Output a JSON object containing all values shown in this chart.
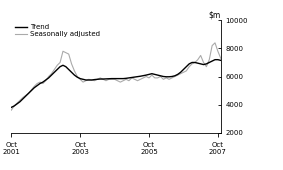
{
  "ylim": [
    2000,
    10000
  ],
  "yticks": [
    2000,
    4000,
    6000,
    8000,
    10000
  ],
  "xlim": [
    0,
    73
  ],
  "xtick_positions": [
    0,
    24,
    48,
    72
  ],
  "xtick_labels": [
    "Oct\n2001",
    "Oct\n2003",
    "Oct\n2005",
    "Oct\n2007"
  ],
  "legend_entries": [
    "Trend",
    "Seasonally adjusted"
  ],
  "trend_color": "#000000",
  "seas_color": "#aaaaaa",
  "background_color": "#ffffff",
  "trend_lw": 1.0,
  "seas_lw": 0.8,
  "trend_data": [
    3800,
    3900,
    4050,
    4200,
    4400,
    4600,
    4800,
    5000,
    5200,
    5350,
    5500,
    5600,
    5750,
    5900,
    6100,
    6300,
    6500,
    6700,
    6800,
    6700,
    6500,
    6300,
    6100,
    5950,
    5850,
    5800,
    5750,
    5750,
    5750,
    5780,
    5800,
    5820,
    5820,
    5830,
    5840,
    5850,
    5850,
    5850,
    5850,
    5850,
    5870,
    5900,
    5930,
    5960,
    5990,
    6020,
    6060,
    6100,
    6150,
    6200,
    6150,
    6100,
    6050,
    6000,
    5980,
    5980,
    6000,
    6050,
    6150,
    6300,
    6500,
    6700,
    6900,
    7000,
    7000,
    6950,
    6900,
    6850,
    6900,
    7000,
    7100,
    7200,
    7200,
    7150
  ],
  "seas_data": [
    3600,
    3900,
    4100,
    4300,
    4500,
    4650,
    4800,
    5050,
    5300,
    5500,
    5600,
    5500,
    5700,
    6000,
    6200,
    6500,
    6800,
    7000,
    7800,
    7700,
    7600,
    6900,
    6400,
    6000,
    5800,
    5600,
    5700,
    5800,
    5750,
    5700,
    5800,
    5900,
    5800,
    5700,
    5800,
    5800,
    5800,
    5700,
    5600,
    5700,
    5800,
    5700,
    5900,
    5800,
    5700,
    5800,
    5900,
    6000,
    5900,
    6100,
    5900,
    5900,
    6000,
    5800,
    5900,
    5800,
    5900,
    6000,
    6100,
    6200,
    6300,
    6400,
    6700,
    6900,
    7000,
    7200,
    7500,
    7000,
    6700,
    7200,
    8200,
    8400,
    7800,
    7300
  ]
}
